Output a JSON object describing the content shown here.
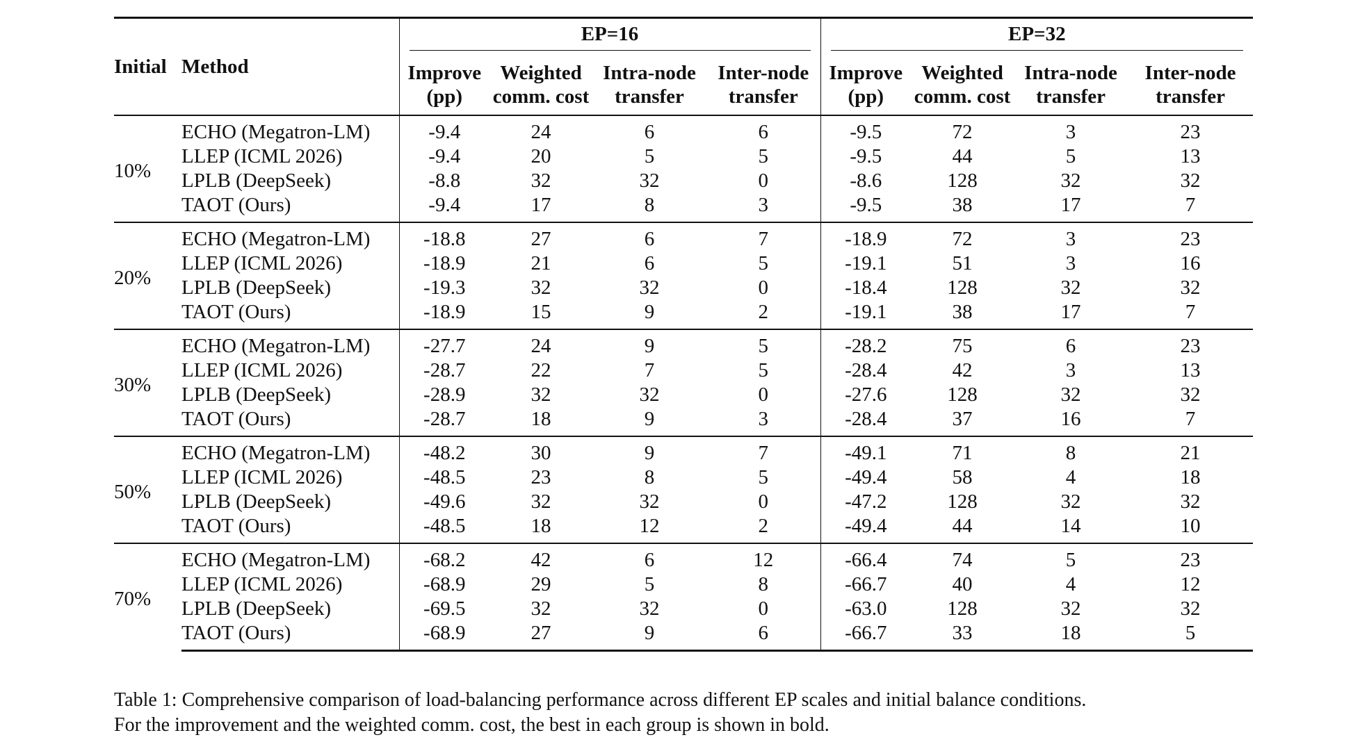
{
  "header": {
    "initial_label": "Initial",
    "method_label": "Method",
    "groups": [
      "EP=16",
      "EP=32"
    ],
    "columns": [
      {
        "l1": "Improve",
        "l2": "(pp)"
      },
      {
        "l1": "Weighted",
        "l2": "comm. cost"
      },
      {
        "l1": "Intra-node",
        "l2": "transfer"
      },
      {
        "l1": "Inter-node",
        "l2": "transfer"
      }
    ]
  },
  "rows": [
    {
      "initial": "10%",
      "items": [
        {
          "method": "ECHO (Megatron-LM)",
          "ep16": [
            "-9.4",
            "24",
            "6",
            "6"
          ],
          "ep32": [
            "-9.5",
            "72",
            "3",
            "23"
          ]
        },
        {
          "method": "LLEP (ICML 2026)",
          "ep16": [
            "-9.4",
            "20",
            "5",
            "5"
          ],
          "ep32": [
            "-9.5",
            "44",
            "5",
            "13"
          ]
        },
        {
          "method": "LPLB (DeepSeek)",
          "ep16": [
            "-8.8",
            "32",
            "32",
            "0"
          ],
          "ep32": [
            "-8.6",
            "128",
            "32",
            "32"
          ]
        },
        {
          "method": "TAOT (Ours)",
          "ep16": [
            "-9.4",
            "17",
            "8",
            "3"
          ],
          "ep32": [
            "-9.5",
            "38",
            "17",
            "7"
          ]
        }
      ]
    },
    {
      "initial": "20%",
      "items": [
        {
          "method": "ECHO (Megatron-LM)",
          "ep16": [
            "-18.8",
            "27",
            "6",
            "7"
          ],
          "ep32": [
            "-18.9",
            "72",
            "3",
            "23"
          ]
        },
        {
          "method": "LLEP (ICML 2026)",
          "ep16": [
            "-18.9",
            "21",
            "6",
            "5"
          ],
          "ep32": [
            "-19.1",
            "51",
            "3",
            "16"
          ]
        },
        {
          "method": "LPLB (DeepSeek)",
          "ep16": [
            "-19.3",
            "32",
            "32",
            "0"
          ],
          "ep32": [
            "-18.4",
            "128",
            "32",
            "32"
          ]
        },
        {
          "method": "TAOT (Ours)",
          "ep16": [
            "-18.9",
            "15",
            "9",
            "2"
          ],
          "ep32": [
            "-19.1",
            "38",
            "17",
            "7"
          ]
        }
      ]
    },
    {
      "initial": "30%",
      "items": [
        {
          "method": "ECHO (Megatron-LM)",
          "ep16": [
            "-27.7",
            "24",
            "9",
            "5"
          ],
          "ep32": [
            "-28.2",
            "75",
            "6",
            "23"
          ]
        },
        {
          "method": "LLEP (ICML 2026)",
          "ep16": [
            "-28.7",
            "22",
            "7",
            "5"
          ],
          "ep32": [
            "-28.4",
            "42",
            "3",
            "13"
          ]
        },
        {
          "method": "LPLB (DeepSeek)",
          "ep16": [
            "-28.9",
            "32",
            "32",
            "0"
          ],
          "ep32": [
            "-27.6",
            "128",
            "32",
            "32"
          ]
        },
        {
          "method": "TAOT (Ours)",
          "ep16": [
            "-28.7",
            "18",
            "9",
            "3"
          ],
          "ep32": [
            "-28.4",
            "37",
            "16",
            "7"
          ]
        }
      ]
    },
    {
      "initial": "50%",
      "items": [
        {
          "method": "ECHO (Megatron-LM)",
          "ep16": [
            "-48.2",
            "30",
            "9",
            "7"
          ],
          "ep32": [
            "-49.1",
            "71",
            "8",
            "21"
          ]
        },
        {
          "method": "LLEP (ICML 2026)",
          "ep16": [
            "-48.5",
            "23",
            "8",
            "5"
          ],
          "ep32": [
            "-49.4",
            "58",
            "4",
            "18"
          ]
        },
        {
          "method": "LPLB (DeepSeek)",
          "ep16": [
            "-49.6",
            "32",
            "32",
            "0"
          ],
          "ep32": [
            "-47.2",
            "128",
            "32",
            "32"
          ]
        },
        {
          "method": "TAOT (Ours)",
          "ep16": [
            "-48.5",
            "18",
            "12",
            "2"
          ],
          "ep32": [
            "-49.4",
            "44",
            "14",
            "10"
          ]
        }
      ]
    },
    {
      "initial": "70%",
      "items": [
        {
          "method": "ECHO (Megatron-LM)",
          "ep16": [
            "-68.2",
            "42",
            "6",
            "12"
          ],
          "ep32": [
            "-66.4",
            "74",
            "5",
            "23"
          ]
        },
        {
          "method": "LLEP (ICML 2026)",
          "ep16": [
            "-68.9",
            "29",
            "5",
            "8"
          ],
          "ep32": [
            "-66.7",
            "40",
            "4",
            "12"
          ]
        },
        {
          "method": "LPLB (DeepSeek)",
          "ep16": [
            "-69.5",
            "32",
            "32",
            "0"
          ],
          "ep32": [
            "-63.0",
            "128",
            "32",
            "32"
          ]
        },
        {
          "method": "TAOT (Ours)",
          "ep16": [
            "-68.9",
            "27",
            "9",
            "6"
          ],
          "ep32": [
            "-66.7",
            "33",
            "18",
            "5"
          ]
        }
      ]
    }
  ],
  "caption": {
    "line1": "Table 1: Comprehensive comparison of load-balancing performance across different EP scales and initial balance conditions.",
    "line2": "For the improvement and the weighted comm. cost, the best in each group is shown in bold."
  }
}
